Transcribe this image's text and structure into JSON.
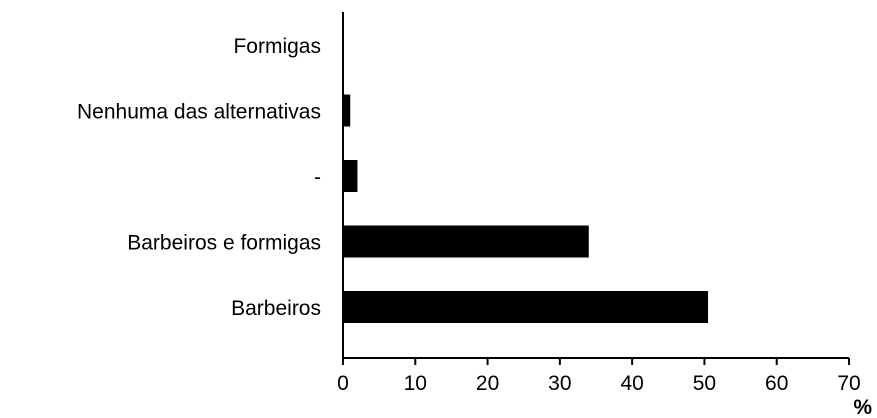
{
  "chart_data": {
    "type": "bar",
    "orientation": "horizontal",
    "categories": [
      "Formigas",
      "Nenhuma das alternativas",
      "-",
      "Barbeiros e formigas",
      "Barbeiros"
    ],
    "values": [
      0,
      1,
      2,
      34,
      50.5
    ],
    "xlim": [
      0,
      70
    ],
    "xticks": [
      0,
      10,
      20,
      30,
      40,
      50,
      60,
      70
    ],
    "xlabel": "%",
    "bar_color": "#000000",
    "grid": false
  }
}
